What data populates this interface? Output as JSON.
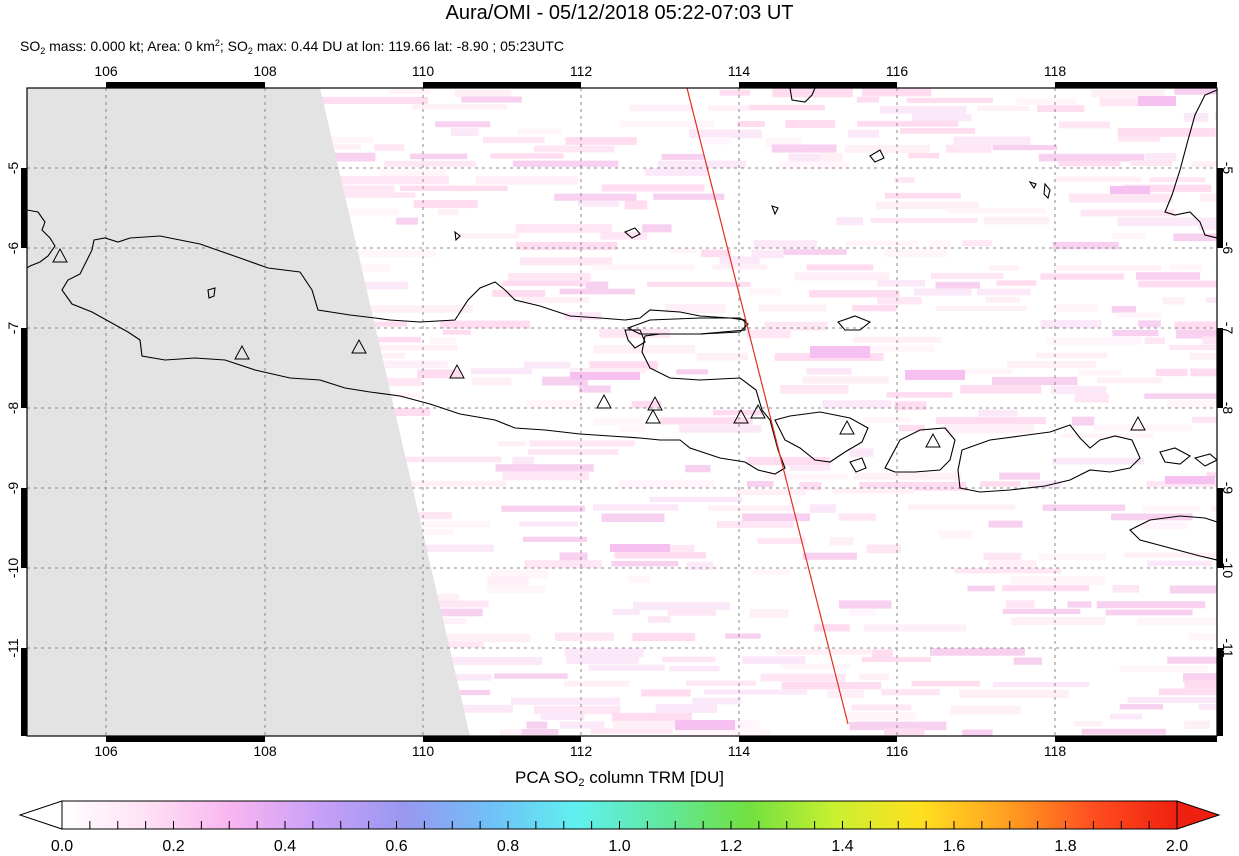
{
  "title": "Aura/OMI - 05/12/2018 05:22-07:03 UT",
  "subtitle": {
    "p1": "SO",
    "s1": "2",
    "p2": " mass: 0.000 kt; Area: 0 km",
    "s2": "2",
    "p3": "; SO",
    "s3": "2",
    "p4": " max: 0.44 DU at lon: 119.66 lat: -8.90 ; 05:23UTC"
  },
  "map": {
    "lon_ticks": [
      "106",
      "108",
      "110",
      "112",
      "114",
      "116",
      "118"
    ],
    "lat_ticks": [
      "-5",
      "-6",
      "-7",
      "-8",
      "-9",
      "-10",
      "-11"
    ],
    "no_data_color": "#e3e3e3",
    "coast_color": "#000000",
    "track_color": "#e03020",
    "volcano_marker": "triangle-icon"
  },
  "colorbar": {
    "title_pre": "PCA SO",
    "title_sub": "2",
    "title_post": " column TRM [DU]",
    "ticks": [
      "0.0",
      "0.2",
      "0.4",
      "0.6",
      "0.8",
      "1.0",
      "1.2",
      "1.4",
      "1.6",
      "1.8",
      "2.0"
    ],
    "colors": [
      "#ffffff",
      "#ffe0f4",
      "#f8b4f0",
      "#c8a0f8",
      "#9898f0",
      "#70c0f8",
      "#60f0f0",
      "#60e8a0",
      "#70e040",
      "#c8f030",
      "#ffe020",
      "#ffa020",
      "#ff5020",
      "#f02010"
    ]
  }
}
